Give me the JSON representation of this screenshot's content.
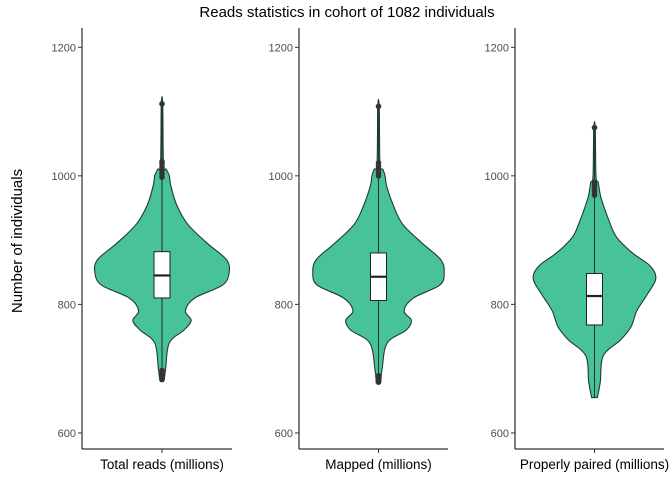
{
  "chart_data": {
    "type": "violin",
    "title": "Reads statistics in cohort of 1082 individuals",
    "ylabel": "Number of individuals",
    "ylim": [
      575,
      1230
    ],
    "yticks": [
      600,
      800,
      1000,
      1200
    ],
    "fill_color": "#48C397",
    "outline_color": "#1F3A3A",
    "grid": false,
    "panels": [
      {
        "name": "Total reads (millions)",
        "median": 845,
        "q1": 810,
        "q3": 882,
        "whisker_low": 700,
        "whisker_high": 1112,
        "outliers": [
          683,
          687,
          692,
          697,
          998,
          1003,
          1008,
          1013,
          1018,
          1022,
          1112
        ],
        "density": [
          [
            682,
            0.03
          ],
          [
            700,
            0.05
          ],
          [
            740,
            0.1
          ],
          [
            760,
            0.3
          ],
          [
            775,
            0.4
          ],
          [
            790,
            0.32
          ],
          [
            810,
            0.45
          ],
          [
            830,
            0.83
          ],
          [
            850,
            0.92
          ],
          [
            870,
            0.88
          ],
          [
            895,
            0.62
          ],
          [
            925,
            0.35
          ],
          [
            955,
            0.2
          ],
          [
            985,
            0.12
          ],
          [
            1000,
            0.1
          ],
          [
            1010,
            0.06
          ],
          [
            1020,
            0.02
          ],
          [
            1112,
            0.01
          ]
        ]
      },
      {
        "name": "Mapped (millions)",
        "median": 843,
        "q1": 806,
        "q3": 880,
        "whisker_low": 693,
        "whisker_high": 1108,
        "outliers": [
          679,
          682,
          686,
          689,
          1000,
          1005,
          1010,
          1015,
          1020,
          1108
        ],
        "density": [
          [
            678,
            0.03
          ],
          [
            700,
            0.05
          ],
          [
            740,
            0.12
          ],
          [
            760,
            0.38
          ],
          [
            775,
            0.45
          ],
          [
            790,
            0.35
          ],
          [
            810,
            0.48
          ],
          [
            830,
            0.84
          ],
          [
            850,
            0.9
          ],
          [
            870,
            0.85
          ],
          [
            895,
            0.6
          ],
          [
            925,
            0.33
          ],
          [
            955,
            0.2
          ],
          [
            985,
            0.11
          ],
          [
            1000,
            0.09
          ],
          [
            1010,
            0.06
          ],
          [
            1020,
            0.02
          ],
          [
            1108,
            0.01
          ]
        ]
      },
      {
        "name": "Properly paired (millions)",
        "median": 813,
        "q1": 768,
        "q3": 848,
        "whisker_low": 655,
        "whisker_high": 1075,
        "outliers": [
          970,
          975,
          980,
          985,
          990,
          1075
        ],
        "density": [
          [
            655,
            0.04
          ],
          [
            680,
            0.08
          ],
          [
            720,
            0.12
          ],
          [
            745,
            0.36
          ],
          [
            765,
            0.5
          ],
          [
            790,
            0.58
          ],
          [
            815,
            0.72
          ],
          [
            840,
            0.84
          ],
          [
            860,
            0.76
          ],
          [
            880,
            0.52
          ],
          [
            905,
            0.3
          ],
          [
            930,
            0.2
          ],
          [
            955,
            0.12
          ],
          [
            970,
            0.08
          ],
          [
            990,
            0.05
          ],
          [
            1000,
            0.02
          ],
          [
            1075,
            0.01
          ]
        ]
      }
    ]
  }
}
